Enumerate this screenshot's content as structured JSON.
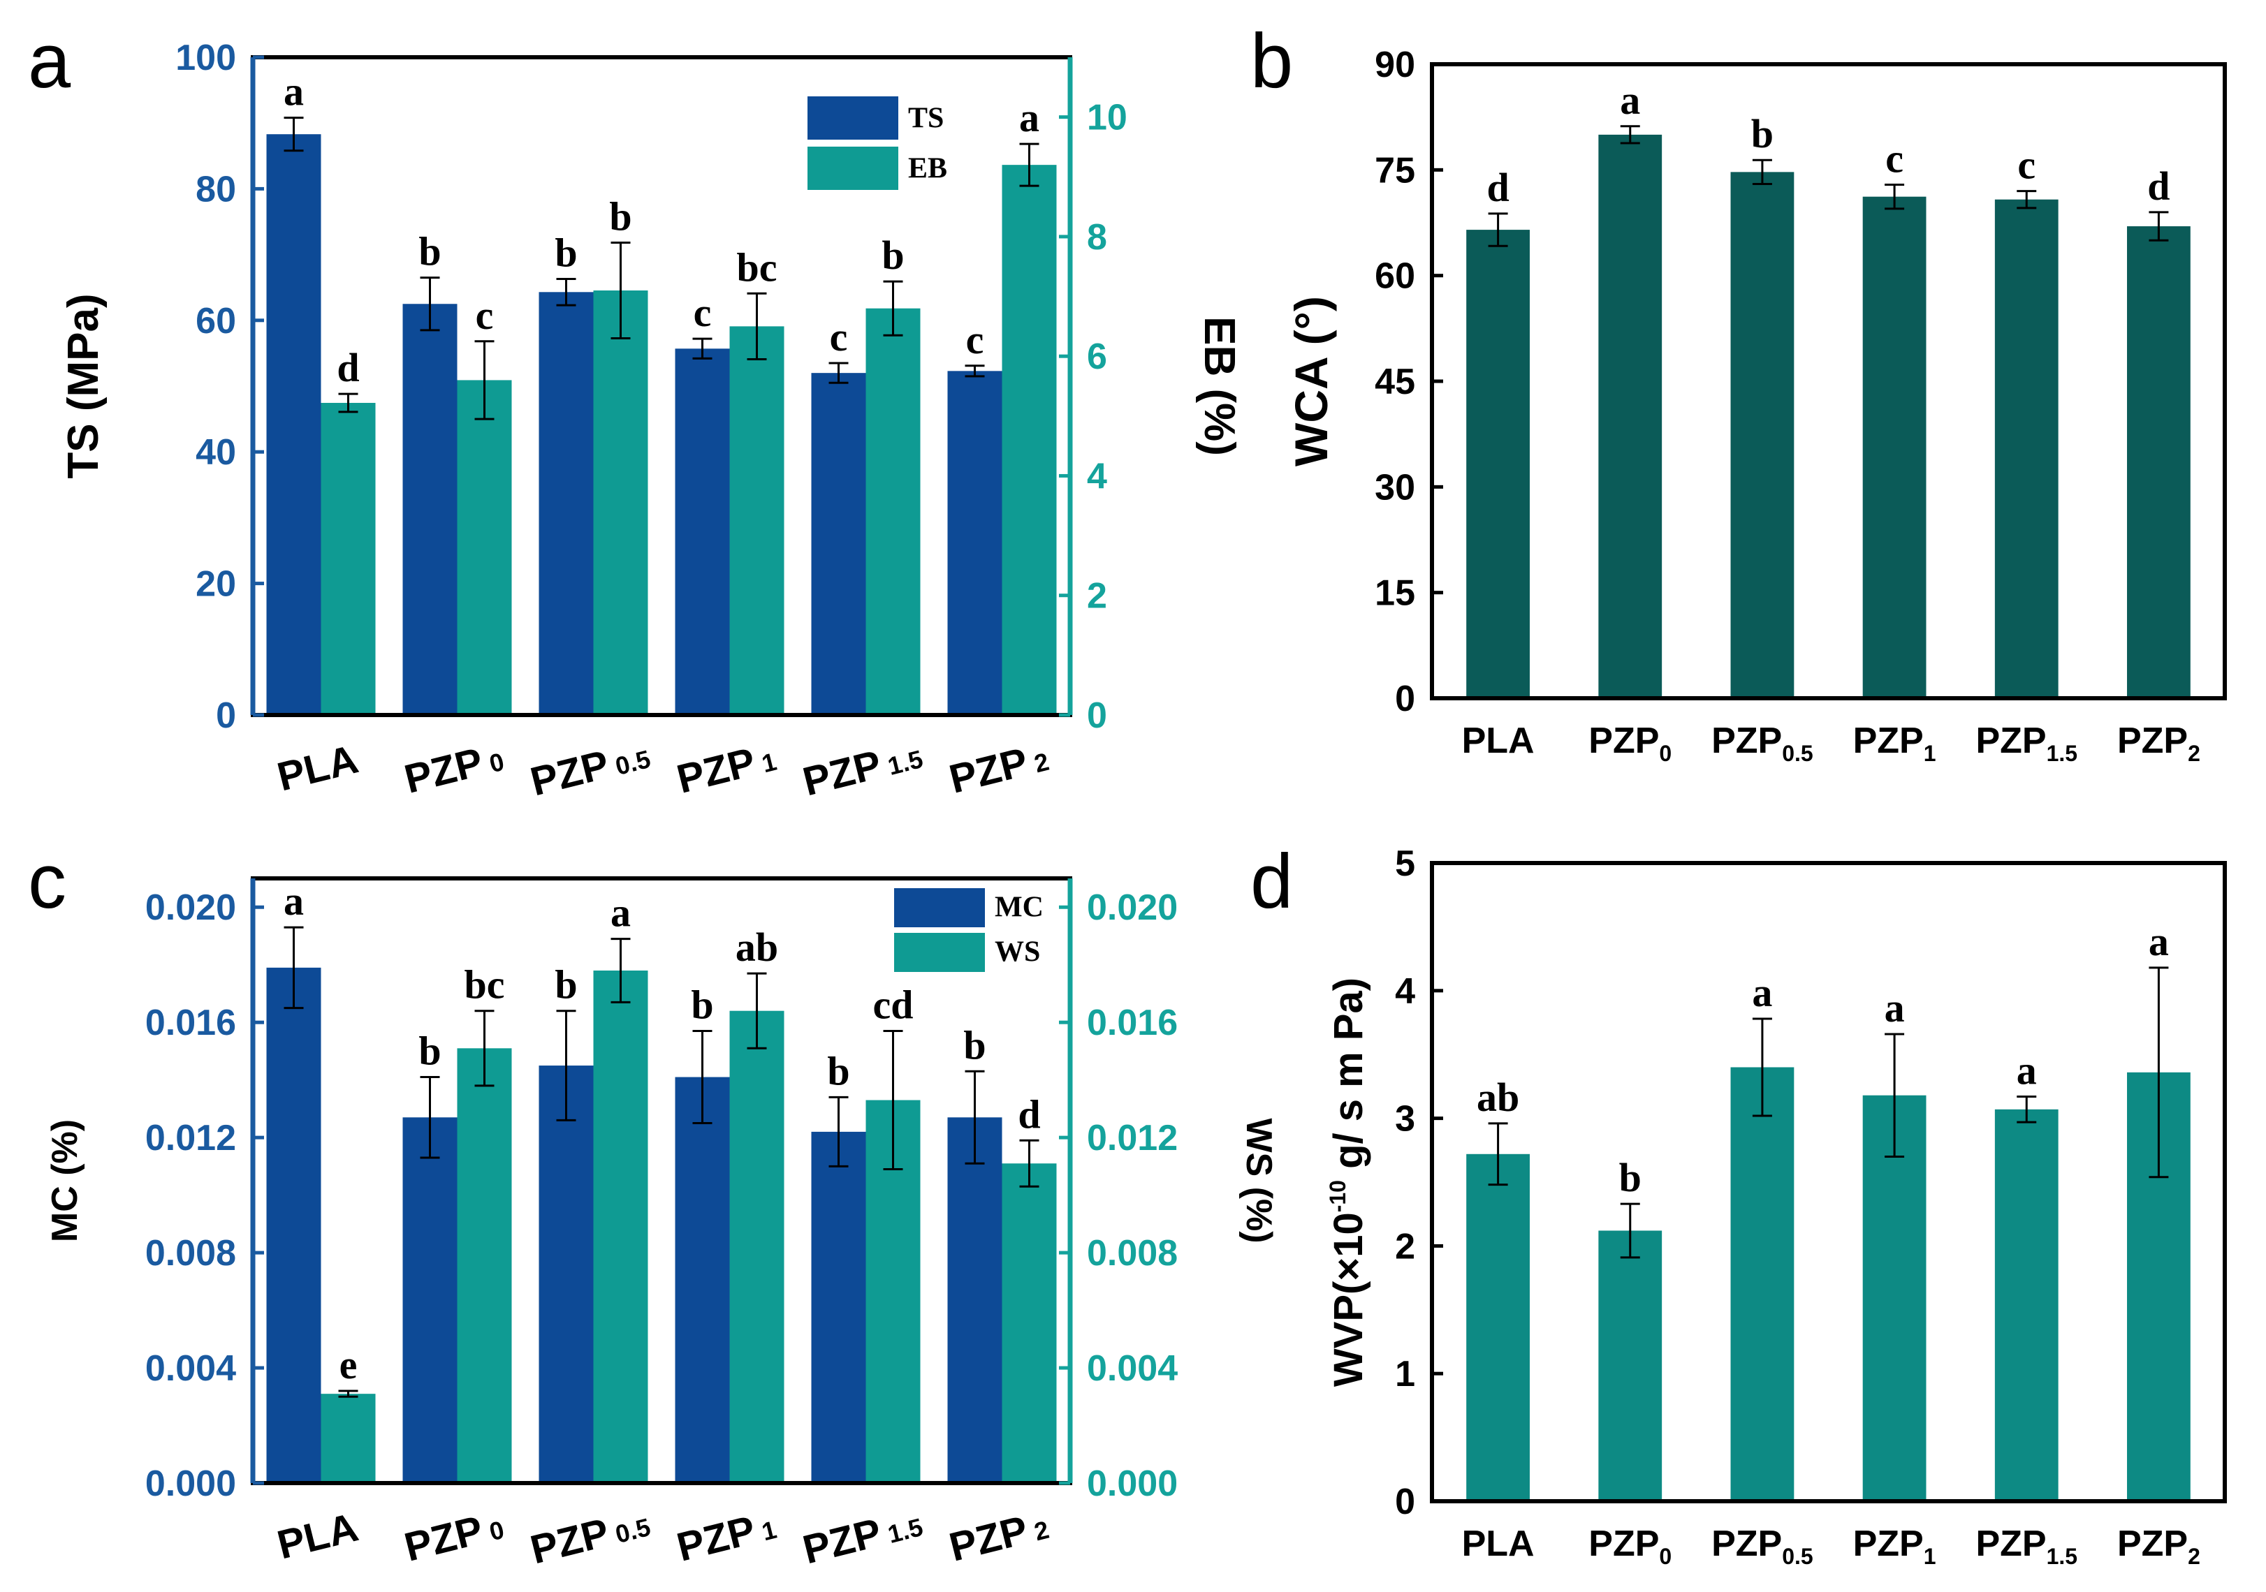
{
  "figure": {
    "colors": {
      "dark_blue": "#0d4a96",
      "teal": "#0f9b93",
      "dark_teal": "#0b5b58",
      "wvp_teal": "#0d8a84",
      "axis": "#000000"
    }
  },
  "chart_data": [
    {
      "panel_label": "a",
      "type": "bar",
      "categories": [
        {
          "base": "PLA",
          "sub": ""
        },
        {
          "base": "PZP",
          "sub": "0"
        },
        {
          "base": "PZP",
          "sub": "0.5"
        },
        {
          "base": "PZP",
          "sub": "1"
        },
        {
          "base": "PZP",
          "sub": "1.5"
        },
        {
          "base": "PZP",
          "sub": "2"
        }
      ],
      "rotated_xticks": true,
      "ylabel": "TS (MPa)",
      "ylim": [
        0,
        100
      ],
      "yticks": [
        "0",
        "20",
        "40",
        "60",
        "80",
        "100"
      ],
      "y2label": "EB (%)",
      "y2lim": [
        0,
        11
      ],
      "y2ticks": [
        "0",
        "2",
        "4",
        "6",
        "8",
        "10"
      ],
      "legend": {
        "position": "top-right",
        "entries": [
          "TS",
          "EB"
        ]
      },
      "series": [
        {
          "name": "TS",
          "axis": "left",
          "color": "#0d4a96",
          "values": [
            88.3,
            62.5,
            64.3,
            55.7,
            52.0,
            52.3
          ],
          "errors": [
            2.5,
            4.0,
            2.0,
            1.5,
            1.5,
            0.8
          ],
          "letters": [
            "a",
            "b",
            "b",
            "c",
            "c",
            "c"
          ]
        },
        {
          "name": "EB",
          "axis": "right",
          "color": "#0f9b93",
          "values": [
            5.22,
            5.6,
            7.1,
            6.5,
            6.8,
            9.2
          ],
          "errors": [
            0.15,
            0.65,
            0.8,
            0.55,
            0.45,
            0.35
          ],
          "letters": [
            "d",
            "c",
            "b",
            "bc",
            "b",
            "a"
          ]
        }
      ]
    },
    {
      "panel_label": "b",
      "type": "bar",
      "categories": [
        {
          "base": "PLA",
          "sub": ""
        },
        {
          "base": "PZP",
          "sub": "0"
        },
        {
          "base": "PZP",
          "sub": "0.5"
        },
        {
          "base": "PZP",
          "sub": "1"
        },
        {
          "base": "PZP",
          "sub": "1.5"
        },
        {
          "base": "PZP",
          "sub": "2"
        }
      ],
      "rotated_xticks": false,
      "ylabel": "WCA (°)",
      "ylim": [
        0,
        90
      ],
      "yticks": [
        "0",
        "15",
        "30",
        "45",
        "60",
        "75",
        "90"
      ],
      "series": [
        {
          "name": "WCA",
          "axis": "left",
          "color": "#0b5b58",
          "values": [
            66.5,
            80.0,
            74.7,
            71.2,
            70.8,
            67.0
          ],
          "errors": [
            2.3,
            1.2,
            1.7,
            1.7,
            1.2,
            2.0
          ],
          "letters": [
            "d",
            "a",
            "b",
            "c",
            "c",
            "d"
          ]
        }
      ]
    },
    {
      "panel_label": "c",
      "type": "bar",
      "categories": [
        {
          "base": "PLA",
          "sub": ""
        },
        {
          "base": "PZP",
          "sub": "0"
        },
        {
          "base": "PZP",
          "sub": "0.5"
        },
        {
          "base": "PZP",
          "sub": "1"
        },
        {
          "base": "PZP",
          "sub": "1.5"
        },
        {
          "base": "PZP",
          "sub": "2"
        }
      ],
      "rotated_xticks": true,
      "ylabel": "MC (%)",
      "ylim": [
        0,
        0.021
      ],
      "yticks": [
        "0.000",
        "0.004",
        "0.008",
        "0.012",
        "0.016",
        "0.020"
      ],
      "y2label": "WS (%)",
      "y2lim": [
        0,
        0.021
      ],
      "y2ticks": [
        "0.000",
        "0.004",
        "0.008",
        "0.012",
        "0.016",
        "0.020"
      ],
      "legend": {
        "position": "top-right",
        "entries": [
          "MC",
          "WS"
        ]
      },
      "series": [
        {
          "name": "MC",
          "axis": "left",
          "color": "#0d4a96",
          "values": [
            0.0179,
            0.0127,
            0.0145,
            0.0141,
            0.0122,
            0.0127
          ],
          "errors": [
            0.0014,
            0.0014,
            0.0019,
            0.0016,
            0.0012,
            0.0016
          ],
          "letters": [
            "a",
            "b",
            "b",
            "b",
            "b",
            "b"
          ]
        },
        {
          "name": "WS",
          "axis": "right",
          "color": "#0f9b93",
          "values": [
            0.0031,
            0.0151,
            0.0178,
            0.0164,
            0.0133,
            0.0111
          ],
          "errors": [
            0.0001,
            0.0013,
            0.0011,
            0.0013,
            0.0024,
            0.0008
          ],
          "letters": [
            "e",
            "bc",
            "a",
            "ab",
            "cd",
            "d"
          ]
        }
      ]
    },
    {
      "panel_label": "d",
      "type": "bar",
      "categories": [
        {
          "base": "PLA",
          "sub": ""
        },
        {
          "base": "PZP",
          "sub": "0"
        },
        {
          "base": "PZP",
          "sub": "0.5"
        },
        {
          "base": "PZP",
          "sub": "1"
        },
        {
          "base": "PZP",
          "sub": "1.5"
        },
        {
          "base": "PZP",
          "sub": "2"
        }
      ],
      "rotated_xticks": false,
      "ylabel": "WVP(×10",
      "ylabel_sup": "-10",
      "ylabel_tail": " g/ s m Pa)",
      "ylim": [
        0,
        5
      ],
      "yticks": [
        "0",
        "1",
        "2",
        "3",
        "4",
        "5"
      ],
      "series": [
        {
          "name": "WVP",
          "axis": "left",
          "color": "#0d8a84",
          "values": [
            2.72,
            2.12,
            3.4,
            3.18,
            3.07,
            3.36
          ],
          "errors": [
            0.24,
            0.21,
            0.38,
            0.48,
            0.1,
            0.82
          ],
          "letters": [
            "ab",
            "b",
            "a",
            "a",
            "a",
            "a"
          ]
        }
      ]
    }
  ]
}
